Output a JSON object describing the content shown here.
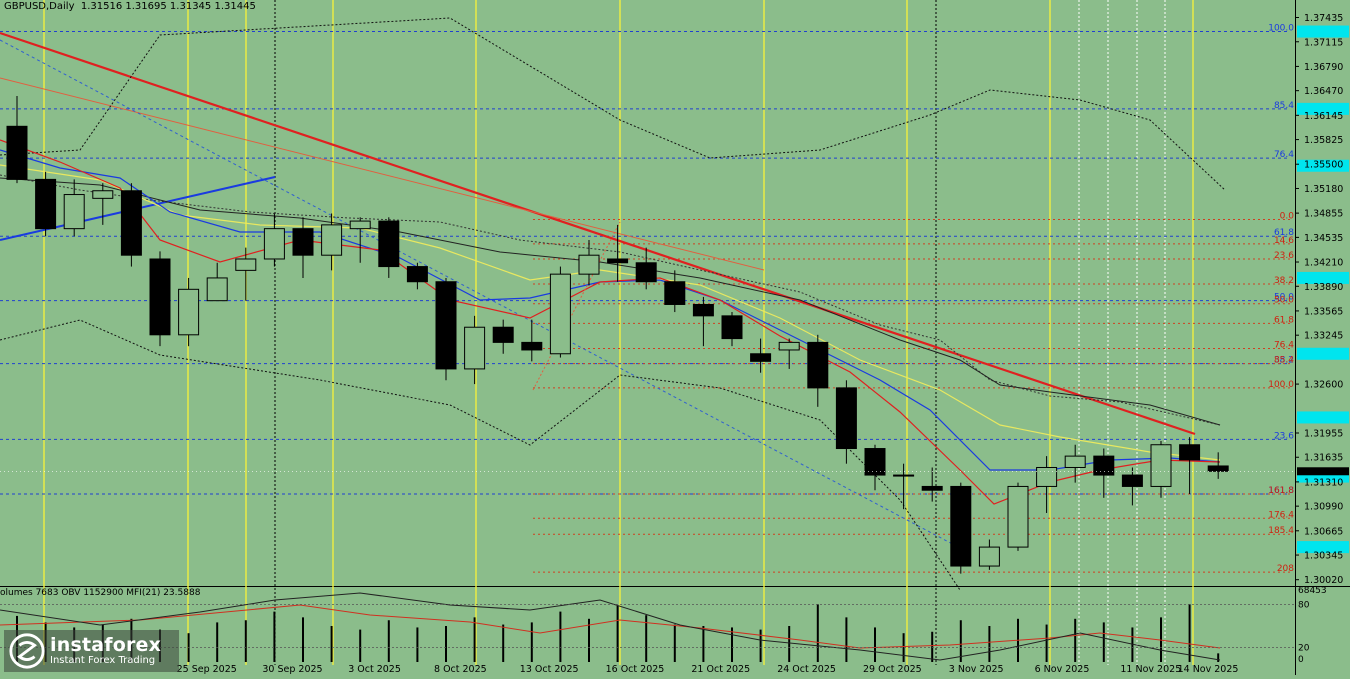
{
  "header": {
    "symbol": "GBPUSD,Daily",
    "ohlc": "1.31516 1.31695 1.31345 1.31445"
  },
  "indicators_label": "olumes 7683  OBV 1152900  MFI(21) 23.5888",
  "watermark": {
    "name": "instaforex",
    "tagline": "Instant Forex Trading"
  },
  "colors": {
    "background": "#8bbd8b",
    "trend_red": "#e02020",
    "trend_blue": "#1a3be0",
    "vline_yellow": "#f0f040",
    "level_cyan": "#00e5ee",
    "bear": "#000000",
    "bull": "#8bbd8b"
  },
  "chart_data": {
    "type": "candlestick",
    "title": "GBPUSD,Daily",
    "ylim": [
      1.2995,
      1.376
    ],
    "price_axis_labels": [
      "1.37435",
      "1.37115",
      "1.36790",
      "1.36470",
      "1.36145",
      "1.35825",
      "1.35500",
      "1.35180",
      "1.34855",
      "1.34535",
      "1.34210",
      "1.33890",
      "1.33565",
      "1.33245",
      "1.32600",
      "1.31955",
      "1.31635",
      "1.31310",
      "1.30990",
      "1.30665",
      "1.30345",
      "1.30020"
    ],
    "price_axis_values": [
      1.37435,
      1.37115,
      1.3679,
      1.3647,
      1.36145,
      1.35825,
      1.355,
      1.3518,
      1.34855,
      1.34535,
      1.3421,
      1.3389,
      1.33565,
      1.33245,
      1.326,
      1.31955,
      1.31635,
      1.3131,
      1.3099,
      1.30665,
      1.30345,
      1.3002
    ],
    "date_labels": [
      "25 Sep 2025",
      "30 Sep 2025",
      "3 Oct 2025",
      "8 Oct 2025",
      "13 Oct 2025",
      "16 Oct 2025",
      "21 Oct 2025",
      "24 Oct 2025",
      "29 Oct 2025",
      "3 Nov 2025",
      "6 Nov 2025",
      "11 Nov 2025",
      "14 Nov 2025"
    ],
    "date_label_slots": [
      6,
      9,
      12,
      15,
      18,
      21,
      24,
      27,
      30,
      33,
      36,
      39,
      41
    ],
    "candles": [
      {
        "o": 1.36,
        "h": 1.364,
        "l": 1.3525,
        "c": 1.353
      },
      {
        "o": 1.353,
        "h": 1.354,
        "l": 1.3455,
        "c": 1.3465
      },
      {
        "o": 1.3465,
        "h": 1.353,
        "l": 1.3455,
        "c": 1.351
      },
      {
        "o": 1.3505,
        "h": 1.3525,
        "l": 1.347,
        "c": 1.3515
      },
      {
        "o": 1.3515,
        "h": 1.3525,
        "l": 1.3415,
        "c": 1.343
      },
      {
        "o": 1.3425,
        "h": 1.3435,
        "l": 1.331,
        "c": 1.3325
      },
      {
        "o": 1.3325,
        "h": 1.34,
        "l": 1.331,
        "c": 1.3385
      },
      {
        "o": 1.337,
        "h": 1.342,
        "l": 1.337,
        "c": 1.34
      },
      {
        "o": 1.341,
        "h": 1.344,
        "l": 1.337,
        "c": 1.3425
      },
      {
        "o": 1.3425,
        "h": 1.3485,
        "l": 1.3415,
        "c": 1.3465
      },
      {
        "o": 1.3465,
        "h": 1.348,
        "l": 1.34,
        "c": 1.343
      },
      {
        "o": 1.343,
        "h": 1.3485,
        "l": 1.341,
        "c": 1.347
      },
      {
        "o": 1.3465,
        "h": 1.348,
        "l": 1.342,
        "c": 1.3475
      },
      {
        "o": 1.3475,
        "h": 1.348,
        "l": 1.34,
        "c": 1.3415
      },
      {
        "o": 1.3415,
        "h": 1.342,
        "l": 1.3385,
        "c": 1.3395
      },
      {
        "o": 1.3395,
        "h": 1.34,
        "l": 1.3265,
        "c": 1.328
      },
      {
        "o": 1.328,
        "h": 1.335,
        "l": 1.326,
        "c": 1.3335
      },
      {
        "o": 1.3335,
        "h": 1.3345,
        "l": 1.33,
        "c": 1.3315
      },
      {
        "o": 1.3315,
        "h": 1.3345,
        "l": 1.329,
        "c": 1.3305
      },
      {
        "o": 1.33,
        "h": 1.3415,
        "l": 1.3295,
        "c": 1.3405
      },
      {
        "o": 1.3405,
        "h": 1.345,
        "l": 1.339,
        "c": 1.343
      },
      {
        "o": 1.3425,
        "h": 1.347,
        "l": 1.3395,
        "c": 1.342
      },
      {
        "o": 1.342,
        "h": 1.344,
        "l": 1.3385,
        "c": 1.3395
      },
      {
        "o": 1.3395,
        "h": 1.341,
        "l": 1.3355,
        "c": 1.3365
      },
      {
        "o": 1.3365,
        "h": 1.3375,
        "l": 1.331,
        "c": 1.335
      },
      {
        "o": 1.335,
        "h": 1.3355,
        "l": 1.331,
        "c": 1.332
      },
      {
        "o": 1.33,
        "h": 1.332,
        "l": 1.3275,
        "c": 1.329
      },
      {
        "o": 1.3305,
        "h": 1.332,
        "l": 1.328,
        "c": 1.3315
      },
      {
        "o": 1.3315,
        "h": 1.3325,
        "l": 1.323,
        "c": 1.3255
      },
      {
        "o": 1.3255,
        "h": 1.3265,
        "l": 1.3155,
        "c": 1.3175
      },
      {
        "o": 1.3175,
        "h": 1.318,
        "l": 1.312,
        "c": 1.314
      },
      {
        "o": 1.314,
        "h": 1.3155,
        "l": 1.3095,
        "c": 1.314
      },
      {
        "o": 1.3125,
        "h": 1.315,
        "l": 1.3105,
        "c": 1.312
      },
      {
        "o": 1.3125,
        "h": 1.313,
        "l": 1.301,
        "c": 1.302
      },
      {
        "o": 1.302,
        "h": 1.3055,
        "l": 1.3015,
        "c": 1.3045
      },
      {
        "o": 1.3045,
        "h": 1.313,
        "l": 1.304,
        "c": 1.3125
      },
      {
        "o": 1.3125,
        "h": 1.3165,
        "l": 1.309,
        "c": 1.315
      },
      {
        "o": 1.315,
        "h": 1.318,
        "l": 1.313,
        "c": 1.3165
      },
      {
        "o": 1.3165,
        "h": 1.3175,
        "l": 1.311,
        "c": 1.314
      },
      {
        "o": 1.314,
        "h": 1.315,
        "l": 1.31,
        "c": 1.3125
      },
      {
        "o": 1.3125,
        "h": 1.3185,
        "l": 1.311,
        "c": 1.318
      },
      {
        "o": 1.318,
        "h": 1.319,
        "l": 1.3115,
        "c": 1.316
      },
      {
        "o": 1.3152,
        "h": 1.317,
        "l": 1.3135,
        "c": 1.3145
      }
    ],
    "fib_levels": [
      {
        "label": "100.0",
        "price": 1.3725,
        "color": "blue"
      },
      {
        "label": "85.4",
        "price": 1.3623,
        "color": "blue"
      },
      {
        "label": "76.4",
        "price": 1.3558,
        "color": "blue"
      },
      {
        "label": "61.8",
        "price": 1.3455,
        "color": "blue"
      },
      {
        "label": "50.0",
        "price": 1.337,
        "color": "blue"
      },
      {
        "label": "38.2",
        "price": 1.3287,
        "color": "blue"
      },
      {
        "label": "23.6",
        "price": 1.3187,
        "color": "blue"
      },
      {
        "label": "161.8",
        "price": 1.3115,
        "color": "blue"
      },
      {
        "label": "0.0",
        "price": 1.3477,
        "color": "red"
      },
      {
        "label": "14.6",
        "price": 1.3445,
        "color": "red"
      },
      {
        "label": "23.6",
        "price": 1.3425,
        "color": "red"
      },
      {
        "label": "38.2",
        "price": 1.3392,
        "color": "red"
      },
      {
        "label": "50.0",
        "price": 1.3366,
        "color": "red"
      },
      {
        "label": "61.8",
        "price": 1.334,
        "color": "red"
      },
      {
        "label": "76.4",
        "price": 1.3307,
        "color": "red"
      },
      {
        "label": "85.4",
        "price": 1.3287,
        "color": "red"
      },
      {
        "label": "100.0",
        "price": 1.3255,
        "color": "red"
      },
      {
        "label": "161.8",
        "price": 1.3115,
        "color": "red"
      },
      {
        "label": "176.4",
        "price": 1.3083,
        "color": "red"
      },
      {
        "label": "185.4",
        "price": 1.3062,
        "color": "red"
      },
      {
        "label": "208",
        "price": 1.3012,
        "color": "red"
      }
    ],
    "cyan_levels": [
      1.3725,
      1.3623,
      1.3548,
      1.34,
      1.33,
      1.3216,
      1.3138,
      1.3045
    ],
    "volume_axis_labels": [
      "68453",
      "80",
      "20",
      "0"
    ],
    "volumes": [
      64,
      55,
      48,
      52,
      60,
      45,
      40,
      55,
      58,
      70,
      62,
      50,
      45,
      58,
      48,
      50,
      62,
      52,
      55,
      70,
      60,
      78,
      65,
      52,
      50,
      48,
      45,
      50,
      80,
      62,
      48,
      40,
      42,
      58,
      50,
      60,
      52,
      60,
      55,
      48,
      62,
      80,
      12
    ]
  }
}
